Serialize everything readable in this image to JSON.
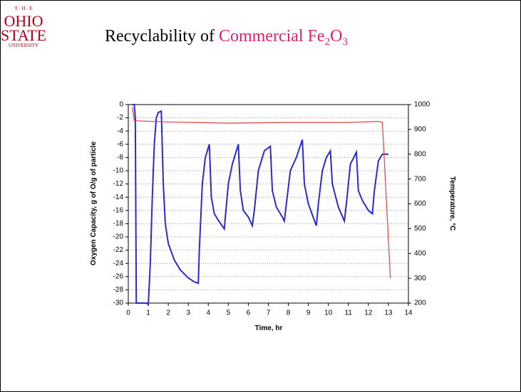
{
  "logo": {
    "top": "T · H · E",
    "line1": "OHIO",
    "line2": "STATE",
    "line3": "UNIVERSITY"
  },
  "title_parts": [
    "Recyclability of ",
    "Commercial Fe",
    "2",
    "O",
    "3"
  ],
  "chart_data": {
    "type": "line",
    "x_label": "Time, hr",
    "y_label": "Oxygen Capacity, g of O/g of particle",
    "y2_label": "Temperature, °C",
    "xlim": [
      0,
      14
    ],
    "xticks": [
      0,
      1,
      2,
      3,
      4,
      5,
      6,
      7,
      8,
      9,
      10,
      11,
      12,
      13,
      14
    ],
    "ylim": [
      -30,
      0
    ],
    "yticks": [
      0,
      -2,
      -4,
      -6,
      -8,
      -10,
      -12,
      -14,
      -16,
      -18,
      -20,
      -22,
      -24,
      -26,
      -28,
      -30
    ],
    "y2lim": [
      200,
      1000
    ],
    "y2ticks": [
      1000,
      900,
      800,
      700,
      600,
      500,
      400,
      300,
      200
    ],
    "grid": true,
    "series": [
      {
        "color": "#2a2ad0",
        "x": [
          0.2,
          0.3,
          0.35,
          0.4,
          0.6,
          0.9,
          1.0,
          1.1,
          1.2,
          1.3,
          1.4,
          1.5,
          1.65,
          1.75,
          1.85,
          2.0,
          2.3,
          2.6,
          3.0,
          3.3,
          3.5,
          3.55,
          3.7,
          3.85,
          4.05,
          4.15,
          4.3,
          4.5,
          4.8,
          4.85,
          5.0,
          5.2,
          5.5,
          5.6,
          5.75,
          6.0,
          6.2,
          6.3,
          6.5,
          6.8,
          7.1,
          7.2,
          7.4,
          7.7,
          7.8,
          7.9,
          8.1,
          8.4,
          8.7,
          8.8,
          9.0,
          9.3,
          9.4,
          9.5,
          9.7,
          9.9,
          10.1,
          10.2,
          10.5,
          10.8,
          10.9,
          11.1,
          11.4,
          11.5,
          11.7,
          12.0,
          12.2,
          12.3,
          12.5,
          12.7,
          13.0
        ],
        "values": [
          0,
          0,
          -2,
          -30,
          -30,
          -30,
          -30.2,
          -24,
          -14,
          -6,
          -2,
          -1.2,
          -1,
          -12,
          -18,
          -21,
          -23.5,
          -25,
          -26.2,
          -26.8,
          -27,
          -22,
          -12,
          -8,
          -6,
          -14,
          -16.5,
          -17.5,
          -18.8,
          -17,
          -12,
          -9,
          -6,
          -13,
          -16,
          -17,
          -18.3,
          -16,
          -10,
          -7,
          -6.3,
          -13,
          -15.5,
          -17,
          -17.6,
          -15,
          -10,
          -8,
          -5.3,
          -12,
          -15,
          -17.5,
          -18.3,
          -15,
          -10,
          -8,
          -7,
          -12,
          -15.5,
          -17.6,
          -15,
          -9,
          -7.2,
          -13,
          -14.5,
          -16,
          -16.5,
          -13,
          -8.5,
          -7.5,
          -7.5
        ]
      },
      {
        "color": "#e04040",
        "axis": "y2",
        "x": [
          0.2,
          0.3,
          2,
          5,
          8,
          11,
          12.5,
          12.7,
          13.1
        ],
        "values": [
          990,
          935,
          930,
          925,
          928,
          928,
          932,
          928,
          300
        ]
      }
    ]
  }
}
